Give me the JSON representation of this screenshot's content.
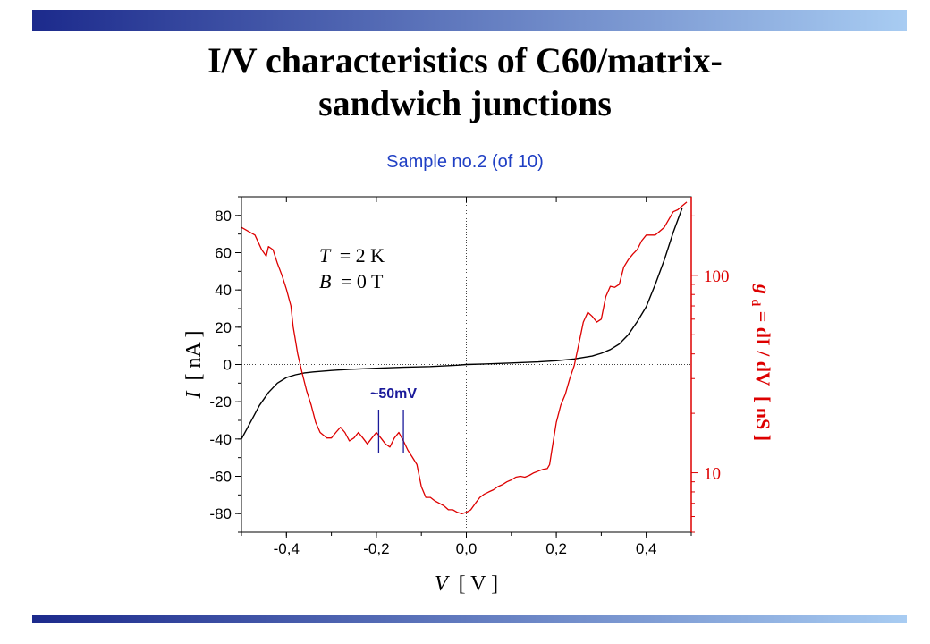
{
  "slide": {
    "title_line1": "I/V characteristics of C60/matrix-",
    "title_line2": "sandwich junctions",
    "subtitle": "Sample no.2 (of 10)"
  },
  "colors": {
    "bar_start": "#1c2a8c",
    "bar_end": "#a8ccf2",
    "subtitle": "#1f3fc4",
    "iv_curve": "#000000",
    "conductance_curve": "#dd0000",
    "annotation": "#1a1a9a"
  },
  "chart_data": {
    "type": "line",
    "xlabel": {
      "symbol": "V",
      "unit": "[ V ]"
    },
    "ylabel_left": {
      "symbol": "I",
      "unit": "[ nA ]"
    },
    "ylabel_right": {
      "symbol": "g",
      "subscript": "d",
      "expr": " = dI / dV",
      "unit": "[ nS ]"
    },
    "xlim": [
      -0.5,
      0.5
    ],
    "ylim_left": [
      -90,
      90
    ],
    "ylim_right": [
      5,
      250
    ],
    "y_right_scale": "log",
    "x_ticks": [
      "-0,4",
      "-0,2",
      "0,0",
      "0,2",
      "0,4"
    ],
    "x_tick_values": [
      -0.4,
      -0.2,
      0.0,
      0.2,
      0.4
    ],
    "y_left_ticks": [
      "80",
      "60",
      "40",
      "20",
      "0",
      "-20",
      "-40",
      "-60",
      "-80"
    ],
    "y_left_tick_values": [
      80,
      60,
      40,
      20,
      0,
      -20,
      -40,
      -60,
      -80
    ],
    "y_right_ticks": [
      "100",
      "10"
    ],
    "y_right_tick_values": [
      100,
      10
    ],
    "zero_lines": "dotted",
    "annotations": {
      "temperature": {
        "lhs": "T",
        "rhs": "= 2 K"
      },
      "field": {
        "lhs": "B",
        "rhs": "= 0 T"
      },
      "spacing": "~50mV",
      "spacing_marks_x": [
        -0.195,
        -0.14
      ]
    },
    "series": [
      {
        "axis": "left",
        "x": [
          -0.5,
          -0.48,
          -0.46,
          -0.44,
          -0.42,
          -0.4,
          -0.38,
          -0.36,
          -0.34,
          -0.3,
          -0.26,
          -0.2,
          -0.14,
          -0.08,
          -0.02,
          0.0,
          0.04,
          0.1,
          0.16,
          0.2,
          0.24,
          0.28,
          0.3,
          0.32,
          0.34,
          0.36,
          0.38,
          0.4,
          0.42,
          0.44,
          0.46,
          0.48
        ],
        "y": [
          -40,
          -31,
          -22,
          -15,
          -10,
          -7,
          -5.5,
          -4.5,
          -4,
          -3.2,
          -2.6,
          -2,
          -1.5,
          -1.1,
          -0.4,
          0,
          0.3,
          0.8,
          1.4,
          2,
          3,
          4.5,
          6,
          8,
          11,
          16,
          23,
          31,
          43,
          56,
          71,
          84
        ]
      },
      {
        "axis": "right",
        "x": [
          -0.5,
          -0.47,
          -0.455,
          -0.445,
          -0.44,
          -0.43,
          -0.42,
          -0.41,
          -0.4,
          -0.39,
          -0.385,
          -0.375,
          -0.365,
          -0.355,
          -0.345,
          -0.335,
          -0.325,
          -0.31,
          -0.3,
          -0.29,
          -0.28,
          -0.27,
          -0.26,
          -0.25,
          -0.24,
          -0.23,
          -0.22,
          -0.21,
          -0.2,
          -0.19,
          -0.18,
          -0.17,
          -0.16,
          -0.15,
          -0.14,
          -0.13,
          -0.12,
          -0.11,
          -0.1,
          -0.09,
          -0.08,
          -0.07,
          -0.06,
          -0.05,
          -0.04,
          -0.03,
          -0.02,
          -0.01,
          0.0,
          0.01,
          0.02,
          0.03,
          0.04,
          0.05,
          0.06,
          0.07,
          0.08,
          0.09,
          0.1,
          0.11,
          0.12,
          0.13,
          0.14,
          0.15,
          0.16,
          0.17,
          0.18,
          0.185,
          0.19,
          0.2,
          0.21,
          0.22,
          0.23,
          0.24,
          0.25,
          0.26,
          0.27,
          0.28,
          0.29,
          0.3,
          0.31,
          0.32,
          0.33,
          0.34,
          0.35,
          0.36,
          0.37,
          0.38,
          0.39,
          0.4,
          0.42,
          0.44,
          0.46,
          0.47,
          0.48,
          0.49
        ],
        "y": [
          175,
          160,
          135,
          125,
          140,
          135,
          115,
          100,
          85,
          70,
          55,
          40,
          32,
          26,
          22,
          18,
          16,
          15,
          15,
          16,
          17,
          16,
          14.5,
          15,
          16,
          15,
          14,
          15,
          16,
          15,
          14,
          13.5,
          15,
          16,
          14.5,
          13,
          12,
          11,
          8.5,
          7.5,
          7.5,
          7.2,
          7,
          6.8,
          6.5,
          6.5,
          6.3,
          6.2,
          6.3,
          6.5,
          7,
          7.5,
          7.8,
          8,
          8.2,
          8.5,
          8.7,
          9,
          9.2,
          9.5,
          9.6,
          9.5,
          9.7,
          10,
          10.2,
          10.4,
          10.5,
          11,
          13,
          18,
          22,
          25,
          30,
          35,
          45,
          58,
          65,
          62,
          58,
          60,
          78,
          88,
          87,
          90,
          110,
          120,
          128,
          135,
          150,
          160,
          160,
          175,
          210,
          215,
          225,
          235
        ]
      }
    ]
  }
}
